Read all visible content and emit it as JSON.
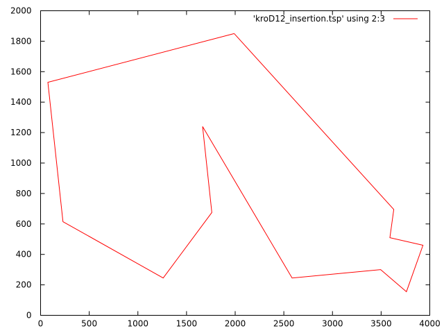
{
  "chart_data": {
    "type": "line",
    "title": "",
    "xlabel": "",
    "ylabel": "",
    "xlim": [
      0,
      4000
    ],
    "ylim": [
      0,
      2000
    ],
    "x_ticks": [
      0,
      500,
      1000,
      1500,
      2000,
      2500,
      3000,
      3500,
      4000
    ],
    "y_ticks": [
      0,
      200,
      400,
      600,
      800,
      1000,
      1200,
      1400,
      1600,
      1800,
      2000
    ],
    "x_tick_labels": [
      "0",
      "500",
      "1000",
      "1500",
      "2000",
      "2500",
      "3000",
      "3500",
      "4000"
    ],
    "y_tick_labels": [
      "0",
      "200",
      "400",
      "600",
      "800",
      "1000",
      "1200",
      "1400",
      "1600",
      "1800",
      "2000"
    ],
    "grid": false,
    "legend_position": "top-right",
    "series": [
      {
        "name": "'kroD12_insertion.tsp' using 2:3",
        "color": "#ff0000",
        "points": [
          [
            1990,
            1850
          ],
          [
            3630,
            695
          ],
          [
            3590,
            510
          ],
          [
            3930,
            460
          ],
          [
            3760,
            155
          ],
          [
            3495,
            300
          ],
          [
            2585,
            245
          ],
          [
            1665,
            1240
          ],
          [
            1760,
            675
          ],
          [
            1260,
            245
          ],
          [
            230,
            615
          ],
          [
            75,
            1530
          ],
          [
            1990,
            1850
          ]
        ]
      }
    ]
  }
}
